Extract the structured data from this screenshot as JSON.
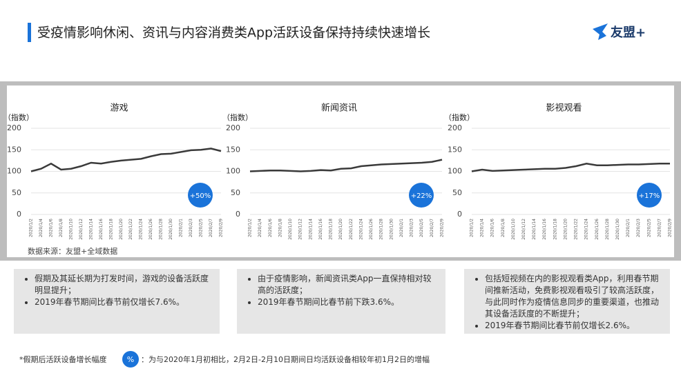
{
  "title": "受疫情影响休闲、资讯与内容消费类App活跃设备保持持续快速增长",
  "logo": "友盟+",
  "source": "数据来源：友盟+全域数据",
  "notes": [
    [
      "假期及其延长期为打发时间，游戏的设备活跃度明显提升；",
      "2019年春节期间比春节前仅增长7.6%。"
    ],
    [
      "由于疫情影响，新闻资讯类App一直保持相对较高的活跃度；",
      "2019年春节期间比春节前下跌3.6%。"
    ],
    [
      "包括短视频在内的影视观看类App，利用春节期间推新活动，免费影视观看吸引了较高活跃度，与此同时作为疫情信息同步的重要渠道，也推动其设备活跃度的不断提升；",
      "2019年春节期间比春节前仅增长2.6%。"
    ]
  ],
  "footnote": {
    "label": "*假期后活跃设备增长幅度",
    "badge": "%",
    "text": "：为与2020年1月初相比，2月2日-2月10日期间日均活跃设备相较年初1月2日的增幅"
  },
  "chart_data": [
    {
      "type": "line",
      "title": "游戏",
      "y_label": "（指数）",
      "annotation": "+50%",
      "categories": [
        "2020/1/2",
        "2020/1/4",
        "2020/1/6",
        "2020/1/8",
        "2020/1/10",
        "2020/1/12",
        "2020/1/14",
        "2020/1/16",
        "2020/1/18",
        "2020/1/20",
        "2020/1/22",
        "2020/1/24",
        "2020/1/26",
        "2020/1/28",
        "2020/1/30",
        "2020/2/1",
        "2020/2/3",
        "2020/2/5",
        "2020/2/7",
        "2020/2/9"
      ],
      "series": [
        {
          "name": "游戏",
          "color": "#3a3a3a",
          "values": [
            100,
            106,
            118,
            104,
            106,
            112,
            120,
            118,
            122,
            125,
            127,
            129,
            135,
            140,
            141,
            145,
            149,
            150,
            153,
            147
          ]
        }
      ],
      "ylim": [
        0,
        200
      ],
      "yticks": [
        0,
        50,
        100,
        150,
        200
      ],
      "grid": true
    },
    {
      "type": "line",
      "title": "新闻资讯",
      "y_label": "（指数）",
      "annotation": "+22%",
      "categories": [
        "2020/1/2",
        "2020/1/4",
        "2020/1/6",
        "2020/1/8",
        "2020/1/10",
        "2020/1/12",
        "2020/1/14",
        "2020/1/16",
        "2020/1/18",
        "2020/1/20",
        "2020/1/22",
        "2020/1/24",
        "2020/1/26",
        "2020/1/28",
        "2020/1/30",
        "2020/2/1",
        "2020/2/3",
        "2020/2/5",
        "2020/2/7",
        "2020/2/9"
      ],
      "series": [
        {
          "name": "新闻资讯",
          "color": "#3a3a3a",
          "values": [
            100,
            101,
            102,
            102,
            101,
            100,
            101,
            103,
            102,
            106,
            107,
            112,
            114,
            116,
            117,
            118,
            119,
            120,
            122,
            127
          ]
        }
      ],
      "ylim": [
        0,
        200
      ],
      "yticks": [
        0,
        50,
        100,
        150,
        200
      ],
      "grid": true
    },
    {
      "type": "line",
      "title": "影视观看",
      "y_label": "（指数）",
      "annotation": "+17%",
      "categories": [
        "2020/1/2",
        "2020/1/4",
        "2020/1/6",
        "2020/1/8",
        "2020/1/10",
        "2020/1/12",
        "2020/1/14",
        "2020/1/16",
        "2020/1/18",
        "2020/1/20",
        "2020/1/22",
        "2020/1/24",
        "2020/1/26",
        "2020/1/28",
        "2020/1/30",
        "2020/2/1",
        "2020/2/3",
        "2020/2/5",
        "2020/2/7",
        "2020/2/9"
      ],
      "series": [
        {
          "name": "影视观看",
          "color": "#3a3a3a",
          "values": [
            100,
            104,
            101,
            102,
            103,
            104,
            105,
            106,
            106,
            108,
            112,
            118,
            114,
            114,
            115,
            116,
            116,
            117,
            118,
            118
          ]
        }
      ],
      "ylim": [
        0,
        200
      ],
      "yticks": [
        0,
        50,
        100,
        150,
        200
      ],
      "grid": true
    }
  ]
}
